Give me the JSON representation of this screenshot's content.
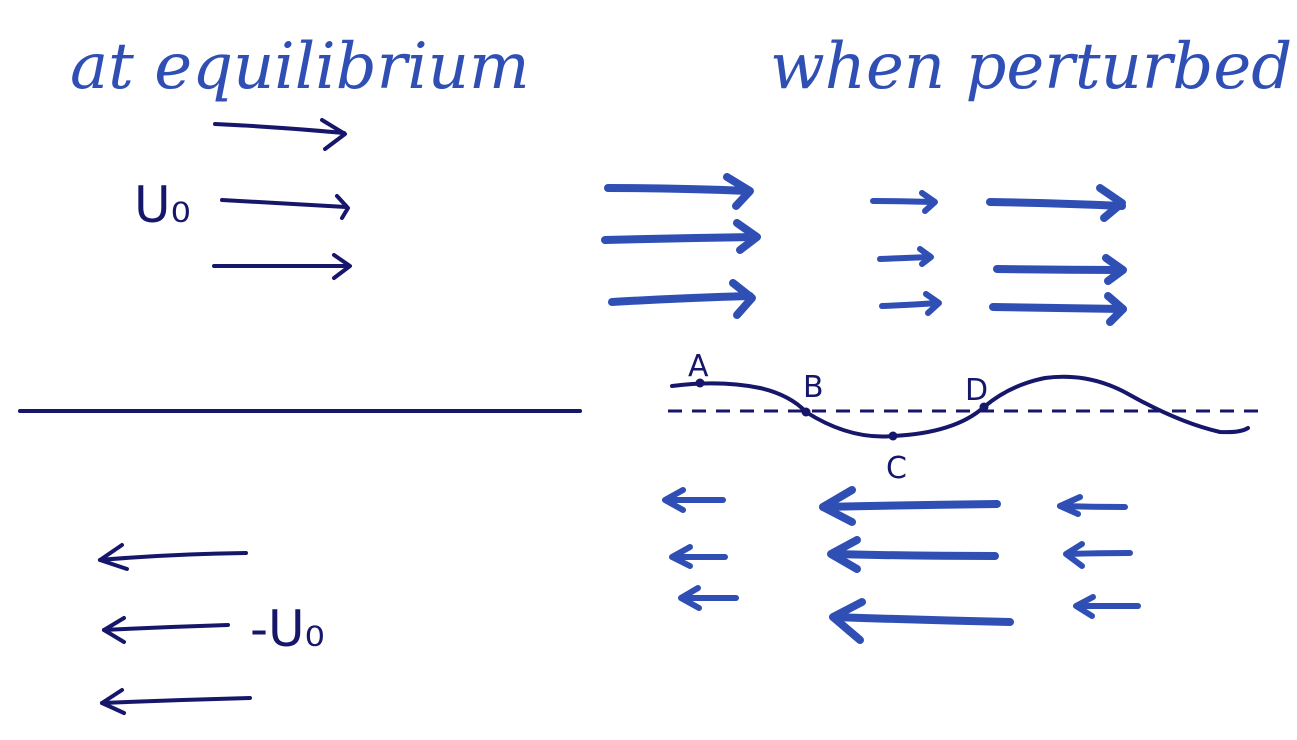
{
  "titles": {
    "left": "at equilibrium",
    "right": "when perturbed"
  },
  "labels": {
    "upper_velocity": "U₀",
    "lower_velocity": "-U₀"
  },
  "points": [
    "A",
    "B",
    "C",
    "D"
  ],
  "colors": {
    "ink_dark": "#16166b",
    "ink_blue": "#2f4fb5"
  }
}
